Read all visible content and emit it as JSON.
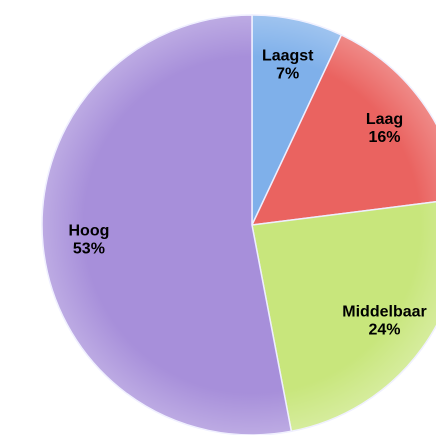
{
  "chart_data": {
    "type": "pie",
    "categories": [
      "Laagst",
      "Laag",
      "Middelbaar",
      "Hoog"
    ],
    "values": [
      7,
      16,
      24,
      53
    ],
    "value_labels": [
      "7%",
      "16%",
      "24%",
      "53%"
    ],
    "colors": [
      "#7fb0ea",
      "#ea6360",
      "#c8e67c",
      "#a78fda"
    ]
  }
}
